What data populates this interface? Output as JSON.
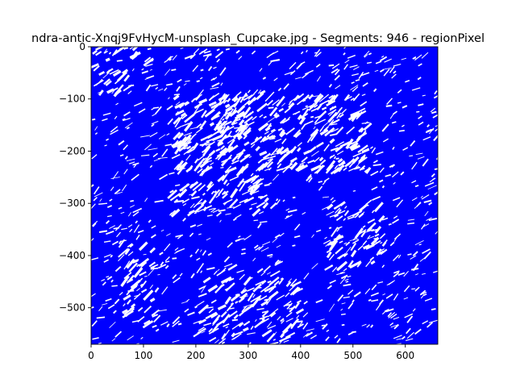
{
  "chart_data": {
    "type": "line",
    "title": "ndra-antic-Xnqj9FvHycM-unsplash_Cupcake.jpg - Segments: 946 - regionPixel",
    "xlabel": "",
    "ylabel": "",
    "xlim": [
      0,
      662
    ],
    "ylim": [
      -570,
      0
    ],
    "x_ticks": [
      0,
      100,
      200,
      300,
      400,
      500,
      600
    ],
    "y_ticks": [
      0,
      -100,
      -200,
      -300,
      -400,
      -500
    ],
    "x_tick_labels": [
      "0",
      "100",
      "200",
      "300",
      "400",
      "500",
      "600"
    ],
    "y_tick_labels": [
      "0",
      "−100",
      "−200",
      "−300",
      "−400",
      "−500"
    ],
    "segment_count": 946,
    "line_color": "#0000ff",
    "grid": false,
    "legend": "none",
    "light_regions": [
      {
        "x": [
          160,
          530
        ],
        "y": [
          -240,
          -95
        ],
        "density": 0.55
      },
      {
        "x": [
          230,
          330
        ],
        "y": [
          -110,
          -85
        ],
        "density": 0.8
      },
      {
        "x": [
          380,
          460
        ],
        "y": [
          -115,
          -95
        ],
        "density": 0.8
      },
      {
        "x": [
          150,
          350
        ],
        "y": [
          -320,
          -250
        ],
        "density": 0.85
      },
      {
        "x": [
          60,
          130
        ],
        "y": [
          -540,
          -380
        ],
        "density": 0.85
      },
      {
        "x": [
          200,
          400
        ],
        "y": [
          -560,
          -420
        ],
        "density": 0.9
      },
      {
        "x": [
          450,
          560
        ],
        "y": [
          -430,
          -300
        ],
        "density": 0.9
      },
      {
        "x": [
          0,
          110
        ],
        "y": [
          -90,
          0
        ],
        "density": 0.9
      }
    ]
  }
}
